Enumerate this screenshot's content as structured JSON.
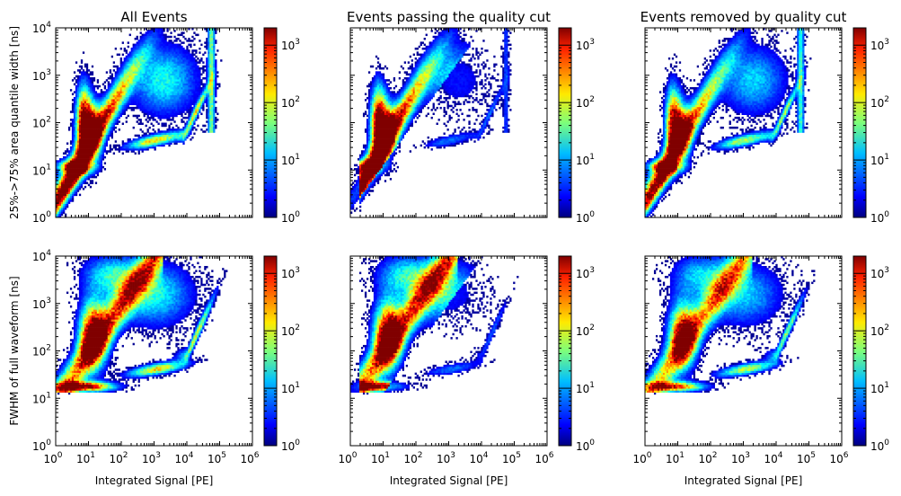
{
  "chart_data": [
    {
      "type": "heatmap",
      "title": "All Events",
      "xlabel": "",
      "ylabel": "25%->75% area quantile width [ns]",
      "xscale": "log",
      "yscale": "log",
      "xlim": [
        1,
        1000000
      ],
      "ylim": [
        1,
        10000
      ],
      "colorbar": {
        "scale": "log",
        "range": [
          1,
          2000
        ],
        "ticks": [
          "10^0",
          "10^1",
          "10^2",
          "10^3"
        ],
        "colormap": "jet"
      },
      "features": [
        {
          "label": "main band",
          "x": [
            1,
            3,
            10,
            30,
            100,
            300,
            1000
          ],
          "y": [
            2,
            6,
            20,
            70,
            250,
            900,
            3000
          ]
        },
        {
          "label": "dense core",
          "x": 12,
          "y": [
            15,
            300
          ],
          "peak_counts": 1500
        },
        {
          "label": "high-signal tail",
          "x": [
            1000,
            5000,
            20000,
            50000,
            80000
          ],
          "y": [
            35,
            45,
            120,
            500,
            3000
          ]
        }
      ]
    },
    {
      "type": "heatmap",
      "title": "Events passing the quality cut",
      "xlabel": "",
      "ylabel": "",
      "xscale": "log",
      "yscale": "log",
      "xlim": [
        1,
        1000000
      ],
      "ylim": [
        1,
        10000
      ],
      "colorbar": {
        "scale": "log",
        "range": [
          1,
          2000
        ],
        "ticks": [
          "10^0",
          "10^1",
          "10^2",
          "10^3"
        ],
        "colormap": "jet"
      }
    },
    {
      "type": "heatmap",
      "title": "Events removed by quality cut",
      "xlabel": "",
      "ylabel": "",
      "xscale": "log",
      "yscale": "log",
      "xlim": [
        1,
        1000000
      ],
      "ylim": [
        1,
        10000
      ],
      "colorbar": {
        "scale": "log",
        "range": [
          1,
          2000
        ],
        "ticks": [
          "10^0",
          "10^1",
          "10^2",
          "10^3"
        ],
        "colormap": "jet"
      }
    },
    {
      "type": "heatmap",
      "title": "",
      "xlabel": "Integrated Signal [PE]",
      "ylabel": "FWHM of full waveform [ns]",
      "xscale": "log",
      "yscale": "log",
      "xlim": [
        1,
        1000000
      ],
      "ylim": [
        1,
        10000
      ],
      "colorbar": {
        "scale": "log",
        "range": [
          1,
          2000
        ],
        "ticks": [
          "10^0",
          "10^1",
          "10^2",
          "10^3"
        ],
        "colormap": "jet"
      },
      "features": [
        {
          "label": "floor band",
          "y": [
            13,
            20
          ],
          "x": [
            1,
            1000
          ]
        },
        {
          "label": "dense core",
          "x": 15,
          "y": [
            100,
            500
          ],
          "peak_counts": 1500
        }
      ]
    },
    {
      "type": "heatmap",
      "title": "",
      "xlabel": "Integrated Signal [PE]",
      "ylabel": "",
      "xscale": "log",
      "yscale": "log",
      "xlim": [
        1,
        1000000
      ],
      "ylim": [
        1,
        10000
      ],
      "colorbar": {
        "scale": "log",
        "range": [
          1,
          2000
        ],
        "ticks": [
          "10^0",
          "10^1",
          "10^2",
          "10^3"
        ],
        "colormap": "jet"
      }
    },
    {
      "type": "heatmap",
      "title": "",
      "xlabel": "Integrated Signal [PE]",
      "ylabel": "",
      "xscale": "log",
      "yscale": "log",
      "xlim": [
        1,
        1000000
      ],
      "ylim": [
        1,
        10000
      ],
      "colorbar": {
        "scale": "log",
        "range": [
          1,
          2000
        ],
        "ticks": [
          "10^0",
          "10^1",
          "10^2",
          "10^3"
        ],
        "colormap": "jet"
      }
    }
  ]
}
